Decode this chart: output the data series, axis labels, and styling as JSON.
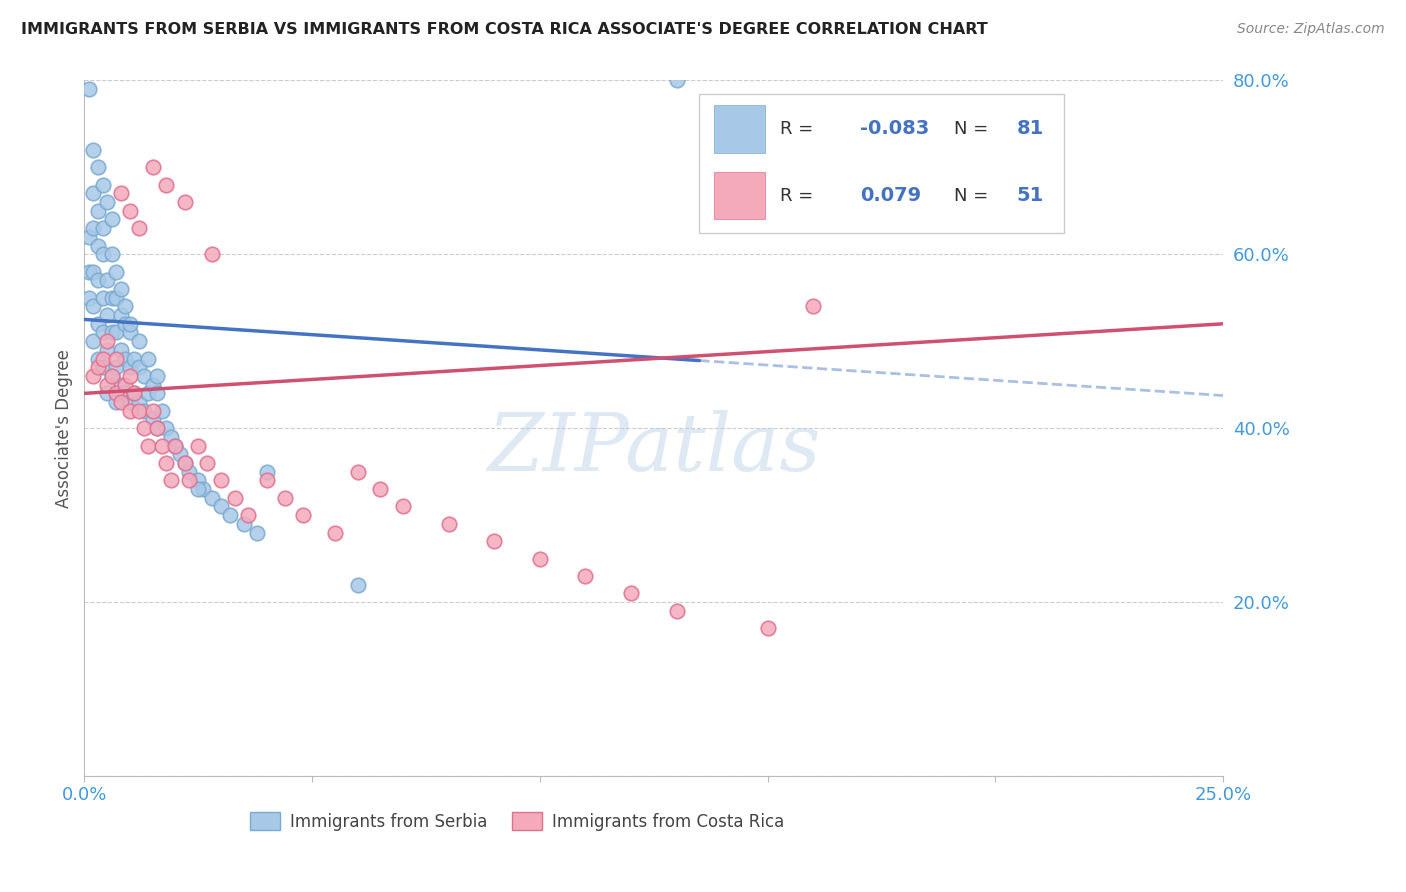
{
  "title": "IMMIGRANTS FROM SERBIA VS IMMIGRANTS FROM COSTA RICA ASSOCIATE'S DEGREE CORRELATION CHART",
  "source": "Source: ZipAtlas.com",
  "ylabel_label": "Associate's Degree",
  "x_min": 0.0,
  "x_max": 0.25,
  "y_min": 0.0,
  "y_max": 0.8,
  "serbia_color": "#a8c8e8",
  "serbia_edge_color": "#7aaad0",
  "costa_rica_color": "#f4aabb",
  "costa_rica_edge_color": "#e07090",
  "serbia_line_color": "#4472c4",
  "costa_rica_line_color": "#d05070",
  "legend_text_color": "#4472c4",
  "grid_color": "#cccccc",
  "tick_color": "#4499dd",
  "serbia_R": -0.083,
  "serbia_N": 81,
  "costa_rica_R": 0.079,
  "costa_rica_N": 51,
  "serbia_x": [
    0.001,
    0.001,
    0.001,
    0.002,
    0.002,
    0.002,
    0.002,
    0.003,
    0.003,
    0.003,
    0.003,
    0.004,
    0.004,
    0.004,
    0.004,
    0.005,
    0.005,
    0.005,
    0.005,
    0.006,
    0.006,
    0.006,
    0.007,
    0.007,
    0.007,
    0.007,
    0.008,
    0.008,
    0.008,
    0.009,
    0.009,
    0.009,
    0.01,
    0.01,
    0.01,
    0.011,
    0.011,
    0.012,
    0.012,
    0.013,
    0.013,
    0.014,
    0.015,
    0.015,
    0.016,
    0.016,
    0.017,
    0.018,
    0.019,
    0.02,
    0.021,
    0.022,
    0.023,
    0.025,
    0.026,
    0.028,
    0.03,
    0.032,
    0.035,
    0.038,
    0.001,
    0.002,
    0.002,
    0.003,
    0.003,
    0.004,
    0.004,
    0.005,
    0.006,
    0.006,
    0.007,
    0.008,
    0.009,
    0.01,
    0.012,
    0.014,
    0.016,
    0.025,
    0.06,
    0.13,
    0.04
  ],
  "serbia_y": [
    0.55,
    0.58,
    0.62,
    0.5,
    0.54,
    0.58,
    0.63,
    0.48,
    0.52,
    0.57,
    0.61,
    0.47,
    0.51,
    0.55,
    0.6,
    0.44,
    0.49,
    0.53,
    0.57,
    0.46,
    0.51,
    0.55,
    0.43,
    0.47,
    0.51,
    0.55,
    0.45,
    0.49,
    0.53,
    0.44,
    0.48,
    0.52,
    0.43,
    0.47,
    0.51,
    0.44,
    0.48,
    0.43,
    0.47,
    0.42,
    0.46,
    0.44,
    0.41,
    0.45,
    0.4,
    0.44,
    0.42,
    0.4,
    0.39,
    0.38,
    0.37,
    0.36,
    0.35,
    0.34,
    0.33,
    0.32,
    0.31,
    0.3,
    0.29,
    0.28,
    0.79,
    0.72,
    0.67,
    0.65,
    0.7,
    0.68,
    0.63,
    0.66,
    0.64,
    0.6,
    0.58,
    0.56,
    0.54,
    0.52,
    0.5,
    0.48,
    0.46,
    0.33,
    0.22,
    0.8,
    0.35
  ],
  "costa_rica_x": [
    0.002,
    0.003,
    0.004,
    0.005,
    0.005,
    0.006,
    0.007,
    0.007,
    0.008,
    0.009,
    0.01,
    0.01,
    0.011,
    0.012,
    0.013,
    0.014,
    0.015,
    0.016,
    0.017,
    0.018,
    0.019,
    0.02,
    0.022,
    0.023,
    0.025,
    0.027,
    0.03,
    0.033,
    0.036,
    0.04,
    0.044,
    0.048,
    0.055,
    0.06,
    0.065,
    0.07,
    0.08,
    0.09,
    0.1,
    0.11,
    0.12,
    0.13,
    0.15,
    0.008,
    0.01,
    0.012,
    0.015,
    0.018,
    0.022,
    0.028,
    0.16
  ],
  "costa_rica_y": [
    0.46,
    0.47,
    0.48,
    0.45,
    0.5,
    0.46,
    0.44,
    0.48,
    0.43,
    0.45,
    0.42,
    0.46,
    0.44,
    0.42,
    0.4,
    0.38,
    0.42,
    0.4,
    0.38,
    0.36,
    0.34,
    0.38,
    0.36,
    0.34,
    0.38,
    0.36,
    0.34,
    0.32,
    0.3,
    0.34,
    0.32,
    0.3,
    0.28,
    0.35,
    0.33,
    0.31,
    0.29,
    0.27,
    0.25,
    0.23,
    0.21,
    0.19,
    0.17,
    0.67,
    0.65,
    0.63,
    0.7,
    0.68,
    0.66,
    0.6,
    0.54
  ]
}
